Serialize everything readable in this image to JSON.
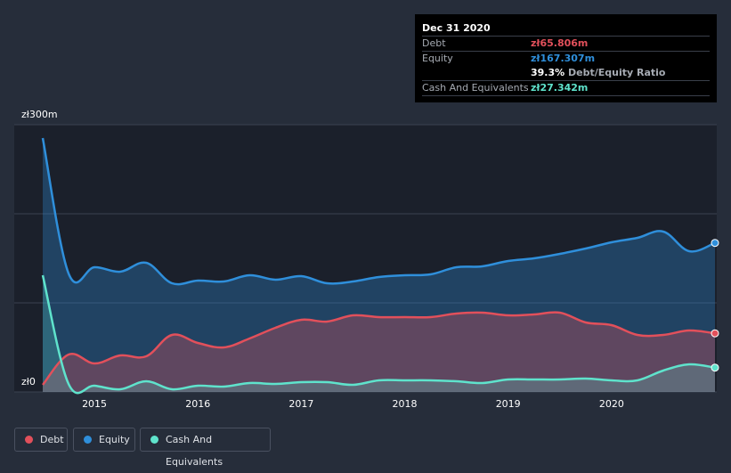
{
  "tooltip": {
    "date": "Dec 31 2020",
    "debt_label": "Debt",
    "debt_value": "zł65.806m",
    "equity_label": "Equity",
    "equity_value": "zł167.307m",
    "ratio_pct": "39.3%",
    "ratio_label": "Debt/Equity Ratio",
    "cash_label": "Cash And Equivalents",
    "cash_value": "zł27.342m"
  },
  "colors": {
    "debt": "#e2505b",
    "equity": "#2f8fdb",
    "cash": "#5fe3cc",
    "background": "#262d3a",
    "plot_background": "#1b202b"
  },
  "legend": {
    "debt": "Debt",
    "equity": "Equity",
    "cash": "Cash And Equivalents"
  },
  "chart_data": {
    "type": "area",
    "ylim": [
      0,
      300
    ],
    "y_ticks": [
      {
        "value": 300,
        "label": "zł300m"
      },
      {
        "value": 0,
        "label": "zł0"
      }
    ],
    "x_ticks": [
      "2015",
      "2016",
      "2017",
      "2018",
      "2019",
      "2020"
    ],
    "x_tick_values": [
      2015,
      2016,
      2017,
      2018,
      2019,
      2020
    ],
    "xlim": [
      2014.2,
      2021
    ],
    "grid": true,
    "legend_position": "bottom-left",
    "series": [
      {
        "name": "Equity",
        "color_key": "equity",
        "x": [
          2014.5,
          2014.75,
          2015.0,
          2015.25,
          2015.5,
          2015.75,
          2016.0,
          2016.25,
          2016.5,
          2016.75,
          2017.0,
          2017.25,
          2017.5,
          2017.75,
          2018.0,
          2018.25,
          2018.5,
          2018.75,
          2019.0,
          2019.25,
          2019.5,
          2019.75,
          2020.0,
          2020.25,
          2020.5,
          2020.75,
          2021.0
        ],
        "values": [
          285,
          133,
          140,
          135,
          145,
          122,
          125,
          124,
          131,
          126,
          130,
          122,
          124,
          129,
          131,
          132,
          140,
          141,
          147,
          150,
          155,
          161,
          168,
          173,
          180,
          158,
          167.3
        ]
      },
      {
        "name": "Debt",
        "color_key": "debt",
        "x": [
          2014.5,
          2014.75,
          2015.0,
          2015.25,
          2015.5,
          2015.75,
          2016.0,
          2016.25,
          2016.5,
          2016.75,
          2017.0,
          2017.25,
          2017.5,
          2017.75,
          2018.0,
          2018.25,
          2018.5,
          2018.75,
          2019.0,
          2019.25,
          2019.5,
          2019.75,
          2020.0,
          2020.25,
          2020.5,
          2020.75,
          2021.0
        ],
        "values": [
          8,
          42,
          32,
          41,
          40,
          64,
          55,
          50,
          60,
          72,
          81,
          79,
          86,
          84,
          84,
          84,
          88,
          89,
          86,
          87,
          89,
          78,
          75,
          64,
          64,
          69,
          65.8
        ]
      },
      {
        "name": "Cash And Equivalents",
        "color_key": "cash",
        "x": [
          2014.5,
          2014.75,
          2015.0,
          2015.25,
          2015.5,
          2015.75,
          2016.0,
          2016.25,
          2016.5,
          2016.75,
          2017.0,
          2017.25,
          2017.5,
          2017.75,
          2018.0,
          2018.25,
          2018.5,
          2018.75,
          2019.0,
          2019.25,
          2019.5,
          2019.75,
          2020.0,
          2020.25,
          2020.5,
          2020.75,
          2021.0
        ],
        "values": [
          131,
          9,
          7,
          3,
          12,
          3,
          7,
          6,
          10,
          9,
          11,
          11,
          8,
          13,
          13,
          13,
          12,
          10,
          14,
          14,
          14,
          15,
          13,
          13,
          24,
          31,
          27.3
        ]
      }
    ]
  }
}
